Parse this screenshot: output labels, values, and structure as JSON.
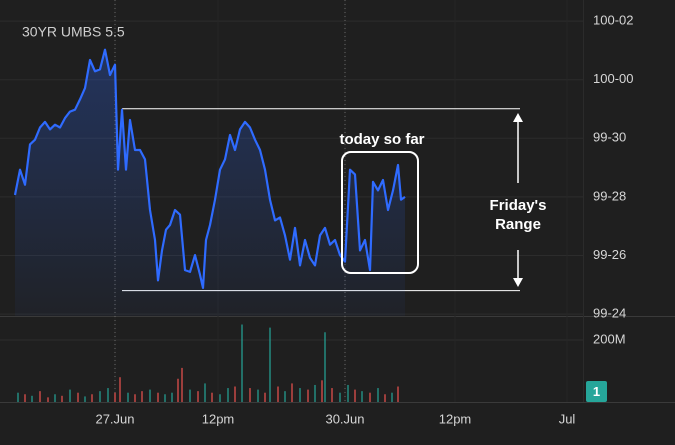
{
  "chart_data": {
    "type": "line",
    "title": "30YR UMBS 5.5",
    "x": [
      0.4,
      1.4,
      2.4,
      3.4,
      4.4,
      5.4,
      6.4,
      7.4,
      8.4,
      9.4,
      10.4,
      11.4,
      12.4,
      13.4,
      14.4,
      15.4,
      16.4,
      17.4,
      18.4,
      19.4,
      20.4,
      21,
      21.8,
      22.6,
      23.4,
      24.4,
      25.4,
      26.4,
      27.4,
      28.4,
      29,
      29.8,
      30.6,
      31.4,
      32.4,
      33.4,
      34.4,
      35.4,
      36.4,
      37.4,
      38,
      38.6,
      39.4,
      40.4,
      41.4,
      42.4,
      43.4,
      44.4,
      45.4,
      46.4,
      47.4,
      48.4,
      49.4,
      50.4,
      51.4,
      52.4,
      53.4,
      54.4,
      55.4,
      56.4,
      57.4,
      58.4,
      59.4,
      60.4,
      61.4,
      62.4,
      63.4,
      64.4,
      65.4,
      66.4,
      67.4,
      68.4,
      69.4,
      70.4,
      71.4,
      72,
      73,
      74,
      75,
      76,
      77,
      77.6,
      78.4
    ],
    "series": [
      {
        "color": "#2f6bff",
        "values": [
          99.877,
          99.904,
          99.888,
          99.931,
          99.936,
          99.949,
          99.955,
          99.947,
          99.952,
          99.949,
          99.959,
          99.966,
          99.968,
          99.979,
          99.991,
          100.021,
          100.009,
          100.011,
          100.032,
          100.005,
          100.016,
          99.904,
          99.968,
          99.904,
          99.957,
          99.925,
          99.925,
          99.915,
          99.861,
          99.829,
          99.786,
          99.818,
          99.84,
          99.845,
          99.861,
          99.856,
          99.797,
          99.795,
          99.813,
          99.792,
          99.778,
          99.829,
          99.845,
          99.872,
          99.904,
          99.915,
          99.941,
          99.925,
          99.947,
          99.955,
          99.949,
          99.936,
          99.925,
          99.904,
          99.872,
          99.85,
          99.853,
          99.834,
          99.808,
          99.842,
          99.802,
          99.829,
          99.81,
          99.802,
          99.834,
          99.842,
          99.824,
          99.829,
          99.813,
          99.806,
          99.904,
          99.899,
          99.818,
          99.829,
          99.797,
          99.891,
          99.882,
          99.893,
          99.861,
          99.882,
          99.909,
          99.872,
          99.875
        ]
      }
    ],
    "xlim": [
      0,
      114
    ],
    "xticks": [
      {
        "value": 20.4,
        "label": "27.Jun"
      },
      {
        "value": 41,
        "label": "12pm"
      },
      {
        "value": 66.4,
        "label": "30.Jun"
      },
      {
        "value": 88.4,
        "label": "12pm"
      },
      {
        "value": 110.8,
        "label": "Jul"
      }
    ],
    "session_breaks": [
      20.4,
      66.4
    ],
    "ylim": [
      99.748,
      100.085
    ],
    "yticks": [
      {
        "value": 100.0625,
        "label": "100-02"
      },
      {
        "value": 100,
        "label": "100-00"
      },
      {
        "value": 99.9375,
        "label": "99-30"
      },
      {
        "value": 99.875,
        "label": "99-28"
      },
      {
        "value": 99.8125,
        "label": "99-26"
      },
      {
        "value": 99.75,
        "label": "99-24"
      }
    ],
    "grid": true,
    "range": {
      "high": 99.969,
      "low": 99.775,
      "label": "Friday's Range"
    },
    "highlight_label": "today so far",
    "volume": {
      "x": [
        1,
        2.4,
        3.8,
        5.4,
        7,
        8.4,
        9.8,
        11.4,
        13,
        14.4,
        15.8,
        17.4,
        19,
        20.4,
        21.4,
        23,
        24.4,
        25.8,
        27.4,
        29,
        30.4,
        31.8,
        33,
        33.8,
        35.4,
        37,
        38.4,
        39.8,
        41.4,
        43,
        44.4,
        45.8,
        47.4,
        49,
        50.4,
        51.4,
        53,
        54.4,
        55.8,
        57.4,
        59,
        60.4,
        61.8,
        62.4,
        63.8,
        65.4,
        67,
        68.4,
        69.8,
        71.4,
        73,
        74.4,
        75.8,
        77
      ],
      "values": [
        30000000,
        25000000,
        20000000,
        35000000,
        15000000,
        25000000,
        20000000,
        40000000,
        30000000,
        18000000,
        25000000,
        35000000,
        45000000,
        30000000,
        80000000,
        30000000,
        25000000,
        35000000,
        40000000,
        30000000,
        25000000,
        30000000,
        75000000,
        110000000,
        40000000,
        35000000,
        60000000,
        30000000,
        25000000,
        45000000,
        50000000,
        250000000,
        45000000,
        40000000,
        30000000,
        240000000,
        50000000,
        35000000,
        60000000,
        45000000,
        40000000,
        55000000,
        70000000,
        225000000,
        45000000,
        30000000,
        55000000,
        40000000,
        35000000,
        30000000,
        45000000,
        25000000,
        30000000,
        50000000
      ],
      "colors": [
        "#26a69a",
        "#ef5350",
        "#26a69a",
        "#ef5350",
        "#ef5350",
        "#26a69a",
        "#ef5350",
        "#26a69a",
        "#ef5350",
        "#26a69a",
        "#ef5350",
        "#26a69a",
        "#26a69a",
        "#ef5350",
        "#ef5350",
        "#26a69a",
        "#ef5350",
        "#ef5350",
        "#26a69a",
        "#ef5350",
        "#26a69a",
        "#26a69a",
        "#ef5350",
        "#ef5350",
        "#26a69a",
        "#ef5350",
        "#26a69a",
        "#ef5350",
        "#26a69a",
        "#26a69a",
        "#ef5350",
        "#26a69a",
        "#ef5350",
        "#26a69a",
        "#ef5350",
        "#26a69a",
        "#ef5350",
        "#26a69a",
        "#ef5350",
        "#26a69a",
        "#ef5350",
        "#26a69a",
        "#ef5350",
        "#26a69a",
        "#ef5350",
        "#26a69a",
        "#26a69a",
        "#ef5350",
        "#26a69a",
        "#ef5350",
        "#26a69a",
        "#ef5350",
        "#26a69a",
        "#ef5350"
      ],
      "ylim": [
        0,
        271000000
      ],
      "yticks": [
        {
          "value": 200000000,
          "label": "200M"
        }
      ]
    },
    "badge": "1"
  }
}
